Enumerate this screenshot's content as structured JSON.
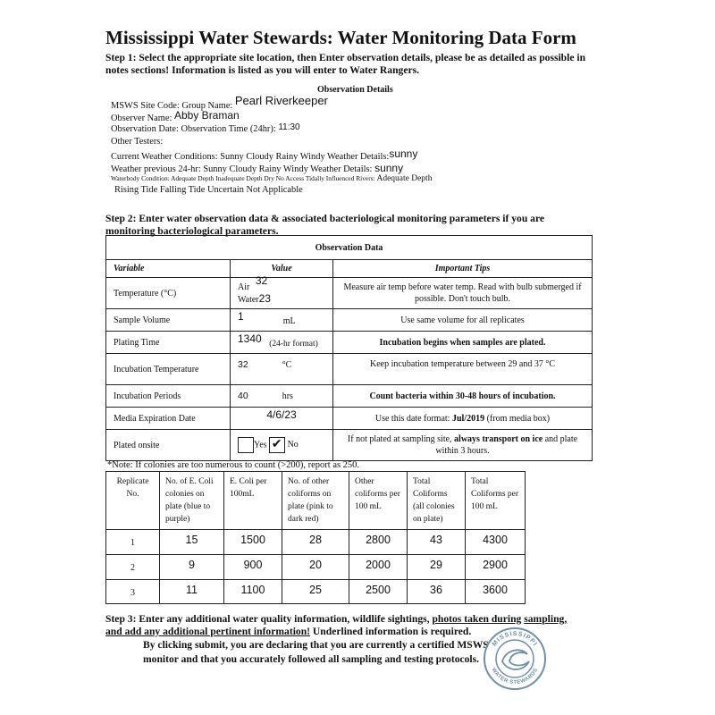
{
  "title": "Mississippi Water Stewards: Water Monitoring Data Form",
  "step1": "Step 1: Select the appropriate site location, then Enter observation details, please be as detailed as  possible in notes sections! Information is listed as you will enter to Water Rangers.",
  "details": {
    "heading": "Observation Details",
    "site_label": "MSWS Site Code: Group Name:",
    "group_name": "Pearl Riverkeeper",
    "observer_label": "Observer Name:",
    "observer_name": "Abby Braman",
    "date_label": "Observation Date: Observation Time (24hr):",
    "time": "11:30",
    "testers_label": "Other Testers:",
    "current_weather_label": "Current Weather Conditions: Sunny Cloudy Rainy Windy Weather Details:",
    "current_weather": "sunny",
    "prev_weather_label": "Weather previous 24-hr: Sunny Cloudy Rainy Windy Weather Details:",
    "prev_weather": "sunny",
    "waterbody_label": "Waterbody Condition: Adequate Depth Inadequate Depth Dry No Access Tidally Influenced Rivers:",
    "waterbody": "Adequate Depth",
    "tide_label": "Rising Tide Falling Tide Uncertain Not Applicable"
  },
  "step2": "Step 2: Enter water observation data & associated bacteriological monitoring parameters if you are  monitoring bacteriological parameters.",
  "obs": {
    "title": "Observation Data",
    "headers": [
      "Variable",
      "Value",
      "Important Tips"
    ],
    "temp": {
      "label": "Temperature (°C)",
      "air_label": "Air",
      "air": "32",
      "water_label": "Water",
      "water": "23",
      "tip": "Measure air temp before water temp. Read with bulb  submerged if possible. Don't touch bulb."
    },
    "volume": {
      "label": "Sample Volume",
      "value": "1",
      "unit": "mL",
      "tip": "Use same volume for all replicates"
    },
    "plating": {
      "label": "Plating Time",
      "value": "1340",
      "unit": "(24-hr format)",
      "tip": "Incubation begins when samples are plated."
    },
    "inc_temp": {
      "label": "Incubation Temperature",
      "value": "32",
      "unit": "°C",
      "tip": "Keep incubation temperature between 29 and 37 °C"
    },
    "inc_period": {
      "label": "Incubation Periods",
      "value": "40",
      "unit": "hrs",
      "tip": "Count bacteria within 30-48 hours of incubation."
    },
    "media": {
      "label": "Media Expiration  Date",
      "value": "4/6/23",
      "tip_pre": "Use this date format: ",
      "tip_bold": "Jul/2019",
      "tip_post": " (from media box)"
    },
    "plated": {
      "label": "Plated onsite",
      "yes": "Yes",
      "no": "No",
      "yes_checked": false,
      "no_checked": true,
      "tip_pre": "If not plated at sampling site, ",
      "tip_bold": "always transport on  ice",
      "tip_post": " and plate within 3 hours."
    }
  },
  "note": "*Note: If colonies are too numerous to count (>200), report as 250.",
  "rep": {
    "headers": [
      "Replicate No.",
      "No. of E. Coli  colonies on plate (blue to purple)",
      "E. Coli per 100mL",
      "No. of other coliforms on plate (pink to dark red)",
      "Other coliforms per 100 mL",
      "Total Coliforms (all colonies on plate)",
      "Total Coliforms per 100 mL"
    ],
    "rows": [
      [
        "1",
        "15",
        "1500",
        "28",
        "2800",
        "43",
        "4300"
      ],
      [
        "2",
        "9",
        "900",
        "20",
        "2000",
        "29",
        "2900"
      ],
      [
        "3",
        "11",
        "1100",
        "25",
        "2500",
        "36",
        "3600"
      ]
    ]
  },
  "step3": {
    "pre": "Step 3: Enter any additional water quality information, wildlife sightings, ",
    "u1": "photos taken ",
    "u2": "during",
    "u3": "sampling,",
    "u4": "and add any additional pertinent information!",
    "post": " Underlined information  is required."
  },
  "declaration": [
    "By clicking submit, you are declaring that you are currently a certified MSWS",
    "monitor and that you accurately followed all sampling and testing protocols."
  ],
  "logo": {
    "top": "MISSISSIPPI",
    "bottom": "WATER STEWARDS",
    "color": "#6f8fa6"
  }
}
